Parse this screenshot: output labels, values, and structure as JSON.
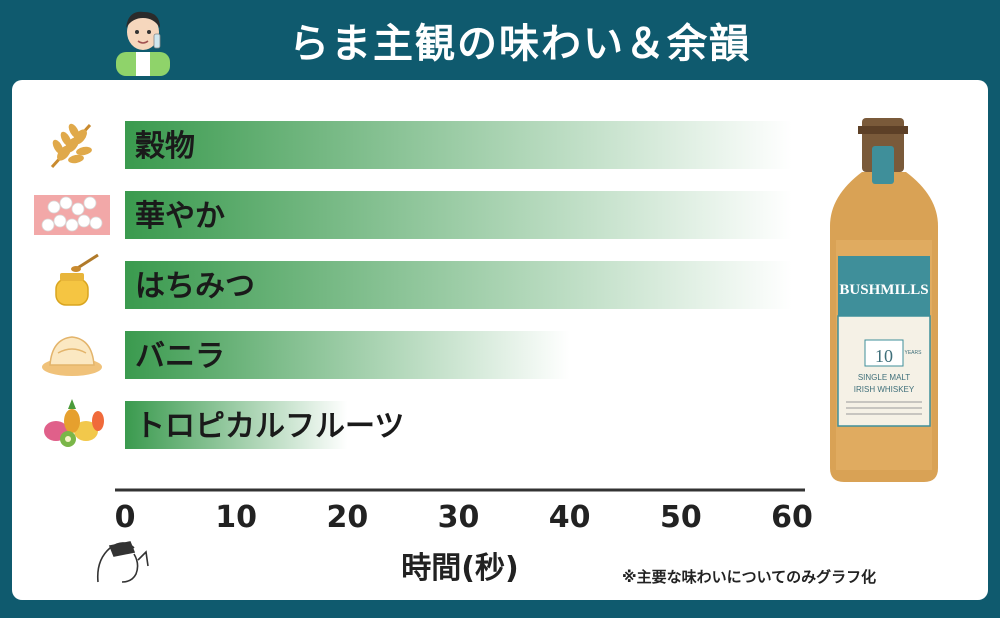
{
  "header": {
    "title": "らま主観の味わい＆余韻"
  },
  "note": "※主要な味わいについてのみグラフ化",
  "colors": {
    "header_bg": "#0f5a6e",
    "bar_start": "#3a9a4e",
    "bar_end": "#ffffff"
  },
  "icons": [
    "grain-icon",
    "flower-icon",
    "honey-icon",
    "vanilla-icon",
    "tropical-fruit-icon"
  ],
  "product": {
    "brand": "BUSHMILLS",
    "age": "10",
    "age_label": "YEARS",
    "line1": "SINGLE MALT",
    "line2": "IRISH WHISKEY"
  },
  "chart_data": {
    "type": "bar",
    "orientation": "horizontal",
    "categories": [
      "穀物",
      "華やか",
      "はちみつ",
      "バニラ",
      "トロピカルフルーツ"
    ],
    "values": [
      60,
      60,
      60,
      40,
      20
    ],
    "xlabel": "時間(秒)",
    "xlim": [
      0,
      60
    ],
    "xticks": [
      "0",
      "10",
      "20",
      "30",
      "40",
      "50",
      "60"
    ],
    "grid": false,
    "legend": "none"
  }
}
